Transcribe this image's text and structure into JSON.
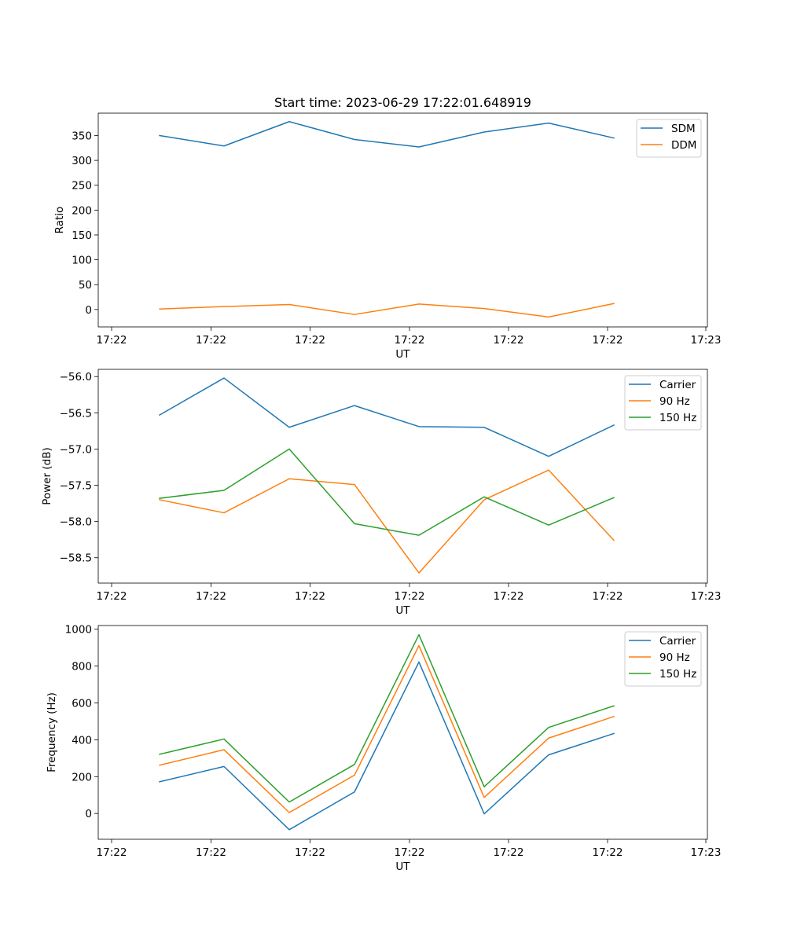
{
  "chart_data": [
    {
      "type": "line",
      "title": "Start time: 2023-06-29 17:22:01.648919",
      "xlabel": "UT",
      "ylabel": "Ratio",
      "x_tick_labels": [
        "17:22",
        "17:22",
        "17:22",
        "17:22",
        "17:22",
        "17:22",
        "17:23"
      ],
      "y_ticks": [
        0,
        50,
        100,
        150,
        200,
        250,
        300,
        350
      ],
      "ylim": [
        -35,
        395
      ],
      "legend": "top-right",
      "series": [
        {
          "name": "SDM",
          "color": "#1f77b4",
          "values": [
            350,
            329,
            378,
            342,
            327,
            357,
            375,
            345
          ]
        },
        {
          "name": "DDM",
          "color": "#ff7f0e",
          "values": [
            1,
            6,
            10,
            -10,
            11,
            2,
            -15,
            12
          ]
        }
      ]
    },
    {
      "type": "line",
      "title": "",
      "xlabel": "UT",
      "ylabel": "Power (dB)",
      "x_tick_labels": [
        "17:22",
        "17:22",
        "17:22",
        "17:22",
        "17:22",
        "17:22",
        "17:23"
      ],
      "y_ticks": [
        -56.0,
        -56.5,
        -57.0,
        -57.5,
        -58.0,
        -58.5
      ],
      "y_tick_labels": [
        "−56.0",
        "−56.5",
        "−57.0",
        "−57.5",
        "−58.0",
        "−58.5"
      ],
      "ylim": [
        -58.85,
        -55.9
      ],
      "legend": "top-right",
      "series": [
        {
          "name": "Carrier",
          "color": "#1f77b4",
          "values": [
            -56.53,
            -56.02,
            -56.7,
            -56.4,
            -56.69,
            -56.7,
            -57.1,
            -56.67
          ]
        },
        {
          "name": "90 Hz",
          "color": "#ff7f0e",
          "values": [
            -57.7,
            -57.88,
            -57.41,
            -57.49,
            -58.71,
            -57.7,
            -57.29,
            -58.26
          ]
        },
        {
          "name": "150 Hz",
          "color": "#2ca02c",
          "values": [
            -57.68,
            -57.57,
            -57.0,
            -58.03,
            -58.19,
            -57.66,
            -58.05,
            -57.67
          ]
        }
      ]
    },
    {
      "type": "line",
      "title": "",
      "xlabel": "UT",
      "ylabel": "Frequency (Hz)",
      "x_tick_labels": [
        "17:22",
        "17:22",
        "17:22",
        "17:22",
        "17:22",
        "17:22",
        "17:23"
      ],
      "y_ticks": [
        0,
        200,
        400,
        600,
        800,
        1000
      ],
      "ylim": [
        -140,
        1020
      ],
      "legend": "top-right",
      "series": [
        {
          "name": "Carrier",
          "color": "#1f77b4",
          "values": [
            172,
            255,
            -88,
            117,
            822,
            -2,
            318,
            434
          ]
        },
        {
          "name": "90 Hz",
          "color": "#ff7f0e",
          "values": [
            262,
            346,
            5,
            208,
            911,
            87,
            409,
            526
          ]
        },
        {
          "name": "150 Hz",
          "color": "#2ca02c",
          "values": [
            321,
            404,
            62,
            266,
            970,
            145,
            467,
            584
          ]
        }
      ]
    }
  ]
}
